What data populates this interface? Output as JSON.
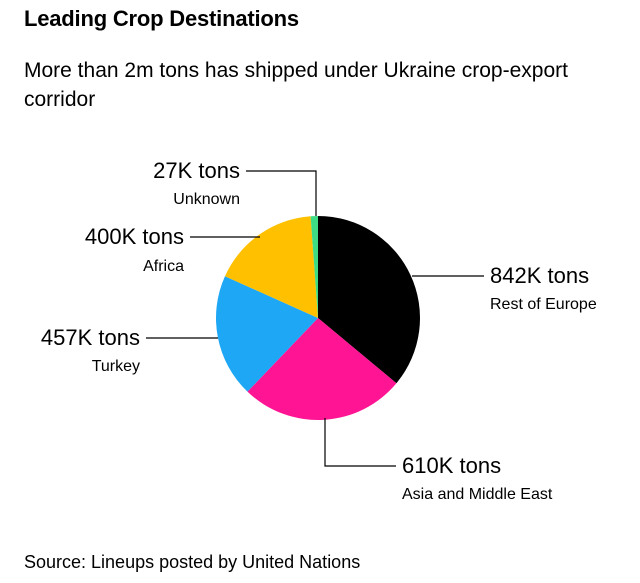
{
  "title": "Leading Crop Destinations",
  "subtitle": "More than 2m tons has shipped under Ukraine crop-export corridor",
  "source": "Source: Lineups posted by United Nations",
  "chart_data": {
    "type": "pie",
    "units": "tons",
    "slices": [
      {
        "label": "Rest of Europe",
        "value": 842000,
        "value_label": "842K tons",
        "color": "#000000"
      },
      {
        "label": "Asia and Middle East",
        "value": 610000,
        "value_label": "610K tons",
        "color": "#ff1493"
      },
      {
        "label": "Turkey",
        "value": 457000,
        "value_label": "457K tons",
        "color": "#1ea7f5"
      },
      {
        "label": "Africa",
        "value": 400000,
        "value_label": "400K tons",
        "color": "#ffc000"
      },
      {
        "label": "Unknown",
        "value": 27000,
        "value_label": "27K tons",
        "color": "#3ddc84"
      }
    ]
  }
}
